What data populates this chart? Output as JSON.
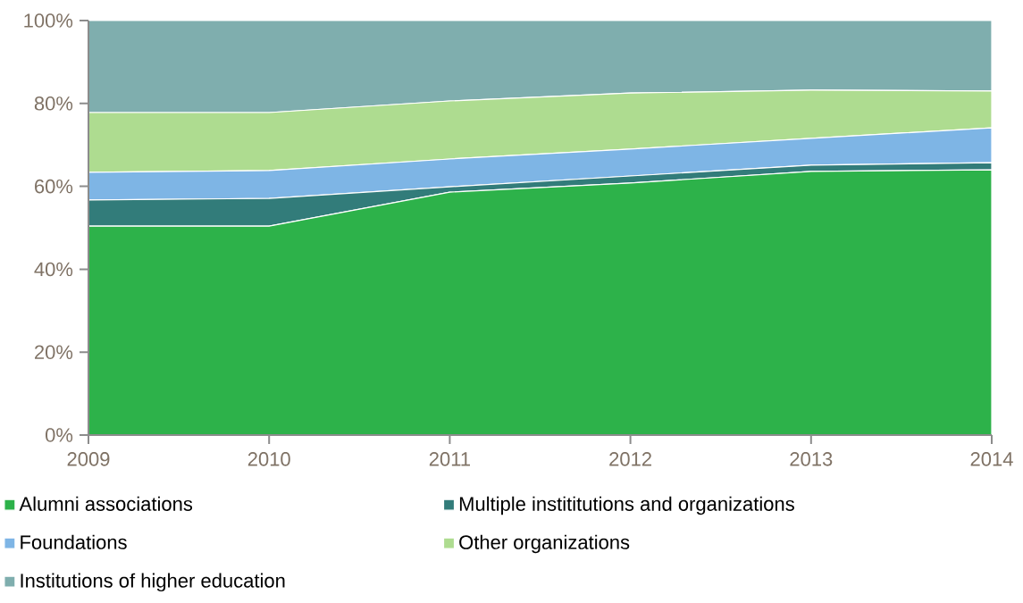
{
  "chart_data": {
    "type": "area",
    "stacked": true,
    "x": [
      2009,
      2010,
      2011,
      2012,
      2013,
      2014
    ],
    "xlim": [
      2009,
      2014
    ],
    "xticks": [
      2009,
      2010,
      2011,
      2012,
      2013,
      2014
    ],
    "ylim": [
      0,
      100
    ],
    "yticks": [
      {
        "value": 0,
        "label": "0%"
      },
      {
        "value": 20,
        "label": "20%"
      },
      {
        "value": 40,
        "label": "40%"
      },
      {
        "value": 60,
        "label": "60%"
      },
      {
        "value": 80,
        "label": "80%"
      },
      {
        "value": 100,
        "label": "100%"
      }
    ],
    "grid": false,
    "legend": "bottom",
    "series": [
      {
        "name": "Alumni associations",
        "color": "#2db24a",
        "values": [
          50.4,
          50.4,
          58.6,
          60.8,
          63.6,
          64.0
        ]
      },
      {
        "name": "Multiple instititutions and organizations",
        "color": "#327c7a",
        "values": [
          6.3,
          6.7,
          1.3,
          1.7,
          1.5,
          1.7
        ]
      },
      {
        "name": "Foundations",
        "color": "#7eb5e5",
        "values": [
          6.7,
          6.7,
          6.7,
          6.5,
          6.5,
          8.4
        ]
      },
      {
        "name": "Other organizations",
        "color": "#aedc90",
        "values": [
          14.4,
          14.0,
          14.0,
          13.5,
          11.6,
          8.9
        ]
      },
      {
        "name": "Institutions of higher education",
        "color": "#7faeae",
        "values": [
          22.2,
          22.2,
          19.4,
          17.5,
          16.8,
          17.0
        ]
      }
    ]
  }
}
